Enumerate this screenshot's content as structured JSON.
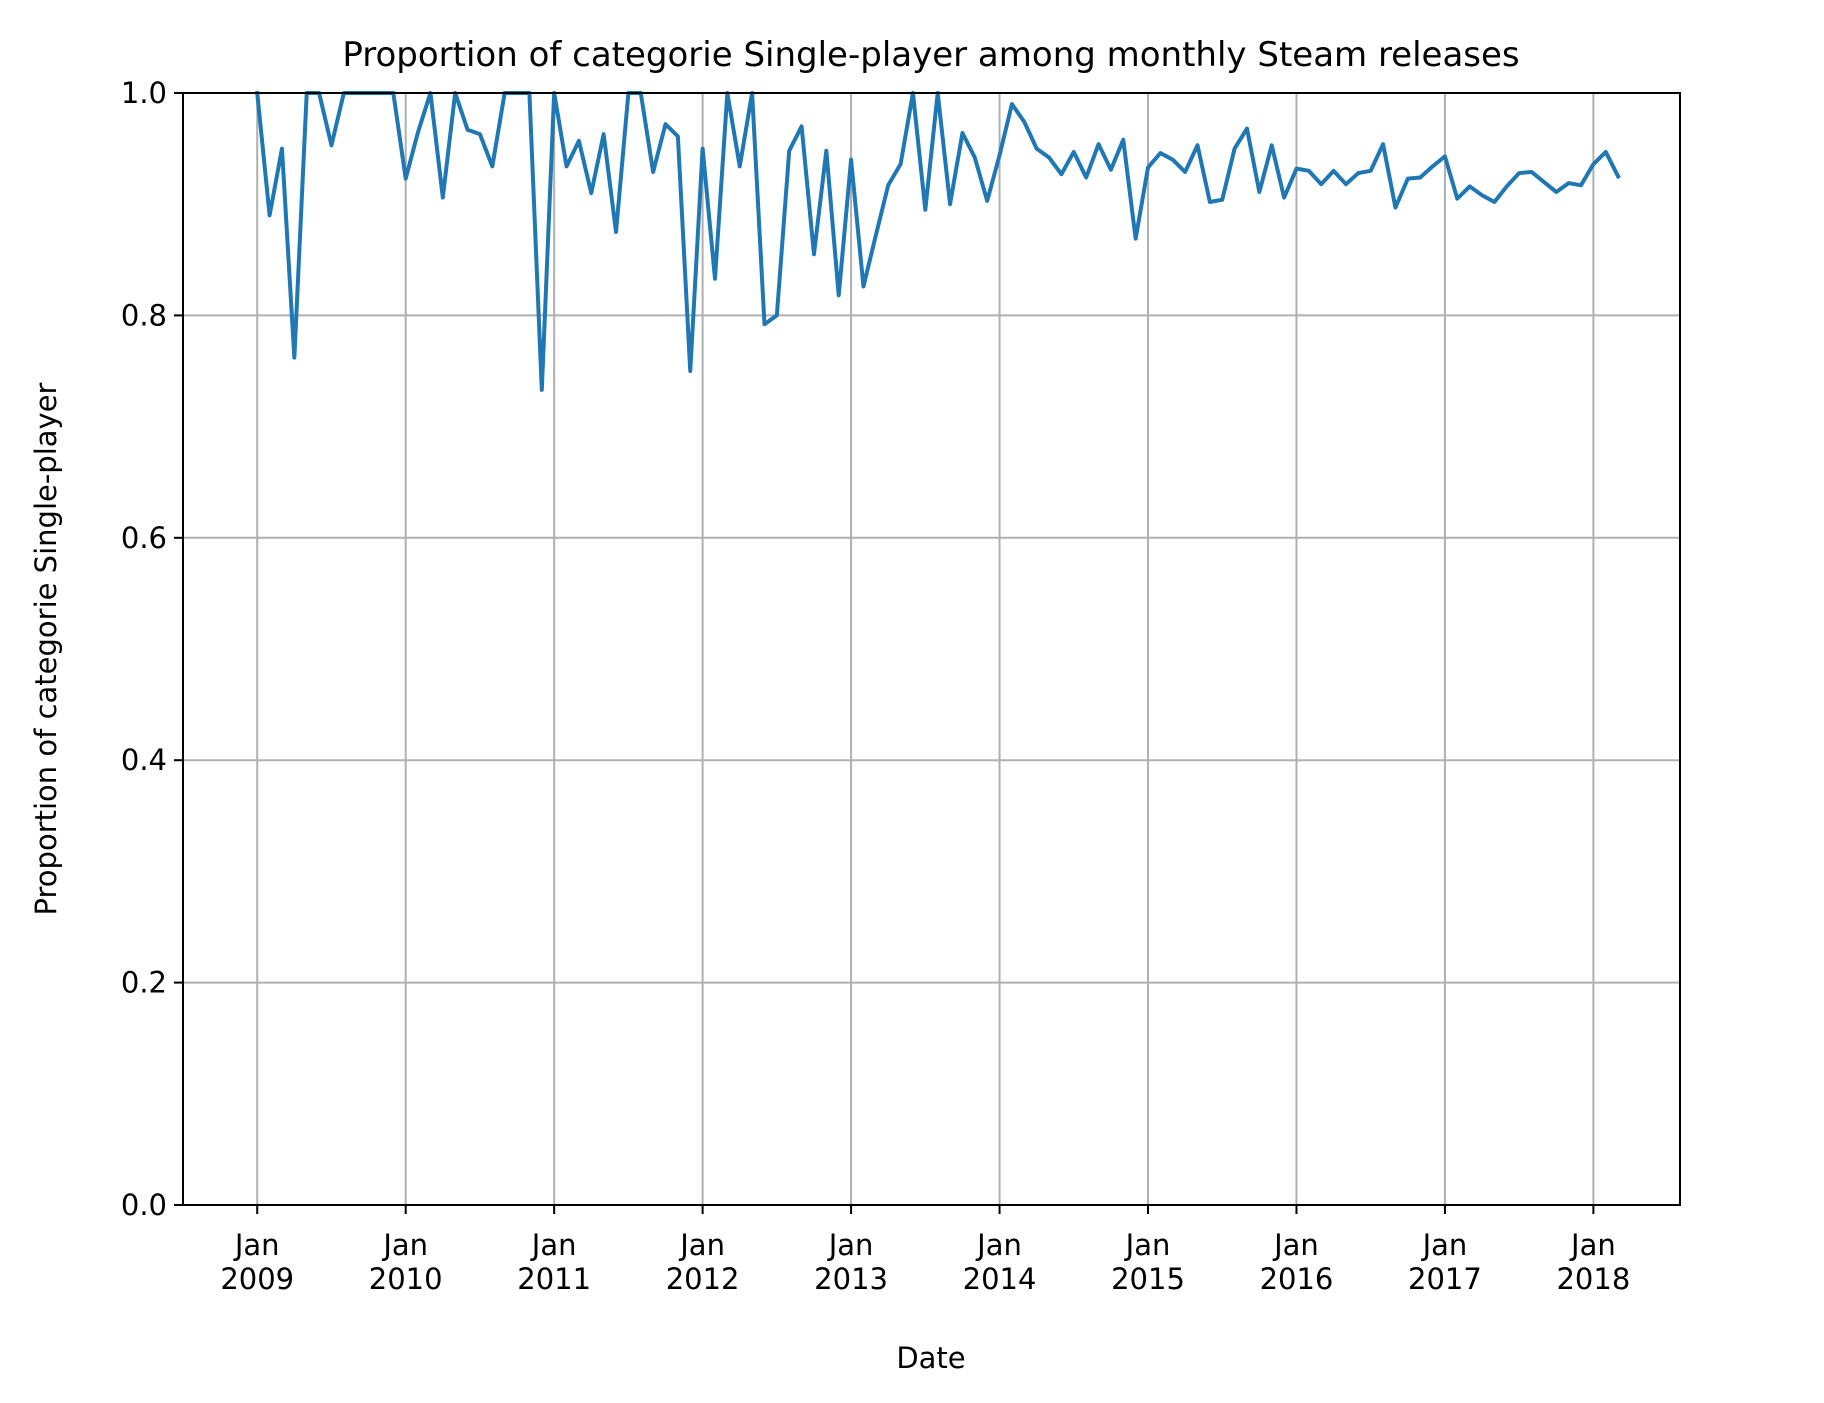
{
  "chart_data": {
    "type": "line",
    "title": "Proportion of categorie Single-player among monthly Steam releases",
    "xlabel": "Date",
    "ylabel": "Proportion of categorie Single-player",
    "ylim": [
      0.0,
      1.0
    ],
    "xlim": [
      "2008-07",
      "2018-08"
    ],
    "grid": true,
    "yticks": [
      "0.0",
      "0.2",
      "0.4",
      "0.6",
      "0.8",
      "1.0"
    ],
    "xticks": [
      {
        "month": "Jan",
        "year": "2009",
        "date": "2009-01"
      },
      {
        "month": "Jan",
        "year": "2010",
        "date": "2010-01"
      },
      {
        "month": "Jan",
        "year": "2011",
        "date": "2011-01"
      },
      {
        "month": "Jan",
        "year": "2012",
        "date": "2012-01"
      },
      {
        "month": "Jan",
        "year": "2013",
        "date": "2013-01"
      },
      {
        "month": "Jan",
        "year": "2014",
        "date": "2014-01"
      },
      {
        "month": "Jan",
        "year": "2015",
        "date": "2015-01"
      },
      {
        "month": "Jan",
        "year": "2016",
        "date": "2016-01"
      },
      {
        "month": "Jan",
        "year": "2017",
        "date": "2017-01"
      },
      {
        "month": "Jan",
        "year": "2018",
        "date": "2018-01"
      }
    ],
    "line_color": "#1f77b4",
    "series": [
      {
        "x": [
          "2009-01",
          "2009-02",
          "2009-03",
          "2009-04",
          "2009-05",
          "2009-06",
          "2009-07",
          "2009-08",
          "2009-09",
          "2009-10",
          "2009-11",
          "2009-12",
          "2010-01",
          "2010-02",
          "2010-03",
          "2010-04",
          "2010-05",
          "2010-06",
          "2010-07",
          "2010-08",
          "2010-09",
          "2010-10",
          "2010-11",
          "2010-12",
          "2011-01",
          "2011-02",
          "2011-03",
          "2011-04",
          "2011-05",
          "2011-06",
          "2011-07",
          "2011-08",
          "2011-09",
          "2011-10",
          "2011-11",
          "2011-12",
          "2012-01",
          "2012-02",
          "2012-03",
          "2012-04",
          "2012-05",
          "2012-06",
          "2012-07",
          "2012-08",
          "2012-09",
          "2012-10",
          "2012-11",
          "2012-12",
          "2013-01",
          "2013-02",
          "2013-03",
          "2013-04",
          "2013-05",
          "2013-06",
          "2013-07",
          "2013-08",
          "2013-09",
          "2013-10",
          "2013-11",
          "2013-12",
          "2014-01",
          "2014-02",
          "2014-03",
          "2014-04",
          "2014-05",
          "2014-06",
          "2014-07",
          "2014-08",
          "2014-09",
          "2014-10",
          "2014-11",
          "2014-12",
          "2015-01",
          "2015-02",
          "2015-03",
          "2015-04",
          "2015-05",
          "2015-06",
          "2015-07",
          "2015-08",
          "2015-09",
          "2015-10",
          "2015-11",
          "2015-12",
          "2016-01",
          "2016-02",
          "2016-03",
          "2016-04",
          "2016-05",
          "2016-06",
          "2016-07",
          "2016-08",
          "2016-09",
          "2016-10",
          "2016-11",
          "2016-12",
          "2017-01",
          "2017-02",
          "2017-03",
          "2017-04",
          "2017-05",
          "2017-06",
          "2017-07",
          "2017-08",
          "2017-09",
          "2017-10",
          "2017-11",
          "2017-12",
          "2018-01",
          "2018-02",
          "2018-03"
        ],
        "values": [
          1.0,
          0.89,
          0.95,
          0.762,
          1.0,
          1.0,
          0.953,
          1.0,
          1.0,
          1.0,
          1.0,
          1.0,
          0.923,
          0.965,
          1.0,
          0.906,
          1.0,
          0.967,
          0.963,
          0.934,
          1.0,
          1.0,
          1.0,
          0.733,
          1.0,
          0.934,
          0.957,
          0.91,
          0.963,
          0.875,
          1.0,
          1.0,
          0.929,
          0.972,
          0.961,
          0.75,
          0.95,
          0.833,
          1.0,
          0.934,
          1.0,
          0.792,
          0.8,
          0.948,
          0.97,
          0.855,
          0.948,
          0.818,
          0.94,
          0.826,
          0.872,
          0.917,
          0.936,
          1.0,
          0.895,
          1.0,
          0.9,
          0.964,
          0.942,
          0.903,
          0.944,
          0.99,
          0.974,
          0.95,
          0.942,
          0.927,
          0.947,
          0.924,
          0.954,
          0.931,
          0.958,
          0.869,
          0.933,
          0.946,
          0.94,
          0.929,
          0.953,
          0.902,
          0.904,
          0.95,
          0.968,
          0.911,
          0.953,
          0.906,
          0.932,
          0.93,
          0.918,
          0.93,
          0.918,
          0.928,
          0.93,
          0.954,
          0.897,
          0.923,
          0.924,
          0.934,
          0.943,
          0.905,
          0.916,
          0.908,
          0.902,
          0.916,
          0.928,
          0.929,
          0.92,
          0.911,
          0.919,
          0.917,
          0.936,
          0.947,
          0.925
        ]
      }
    ]
  }
}
